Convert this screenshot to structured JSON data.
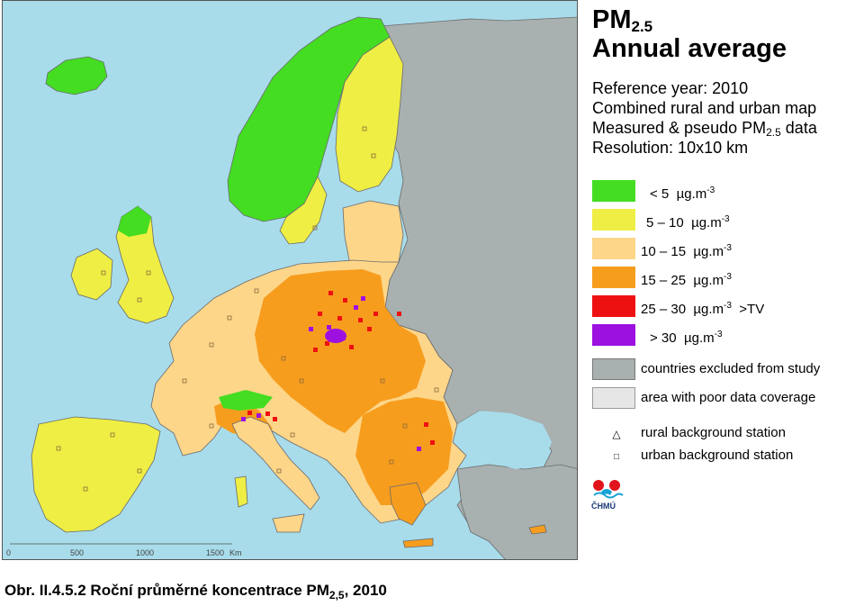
{
  "map": {
    "colors": {
      "sea": "#a8dceb",
      "lt5": "#44dd22",
      "c5_10": "#eeee44",
      "c10_15": "#fdd68a",
      "c15_25": "#f79d1e",
      "c25_30": "#ee1111",
      "gt30": "#9c10e0",
      "excluded": "#a8b0b0",
      "poor": "#e6e6e6",
      "border": "#6a6a6a"
    },
    "scale": {
      "ticks": [
        "0",
        "500",
        "1000",
        "1500"
      ],
      "unit": "Km"
    }
  },
  "legend": {
    "title": {
      "main": "PM",
      "sub": "2.5",
      "line2": "Annual average"
    },
    "info": {
      "reference_year": "Reference year: 2010",
      "combined": "Combined rural and urban map",
      "measured_prefix": "Measured & pseudo PM",
      "measured_sub": "2.5",
      "measured_suffix": " data",
      "resolution": "Resolution: 10x10 km"
    },
    "classes": [
      {
        "range": "<  5",
        "unit": "µg.m",
        "exp": "-3",
        "extra": "",
        "color": "#44dd22"
      },
      {
        "range": "5 – 10",
        "unit": "µg.m",
        "exp": "-3",
        "extra": "",
        "color": "#eeee44"
      },
      {
        "range": "10 – 15",
        "unit": "µg.m",
        "exp": "-3",
        "extra": "",
        "color": "#fdd68a"
      },
      {
        "range": "15 – 25",
        "unit": "µg.m",
        "exp": "-3",
        "extra": "",
        "color": "#f79d1e"
      },
      {
        "range": "25 – 30",
        "unit": "µg.m",
        "exp": "-3",
        "extra": ">TV",
        "color": "#ee1111"
      },
      {
        "range": ">  30",
        "unit": "µg.m",
        "exp": "-3",
        "extra": "",
        "color": "#9c10e0"
      }
    ],
    "excluded": {
      "label": "countries excluded from study",
      "color": "#a8b0b0"
    },
    "poor": {
      "label": "area with poor data coverage",
      "color": "#e6e6e6"
    },
    "stations": {
      "rural": {
        "symbol": "△",
        "label": "rural background station"
      },
      "urban": {
        "symbol": "□",
        "label": "urban background station"
      }
    },
    "logo": {
      "text": "ČHMÚ"
    }
  },
  "caption": {
    "prefix": "Obr. II.4.5.2  Roční průměrné koncentrace PM",
    "sub": "2,5",
    "suffix": ", 2010"
  }
}
